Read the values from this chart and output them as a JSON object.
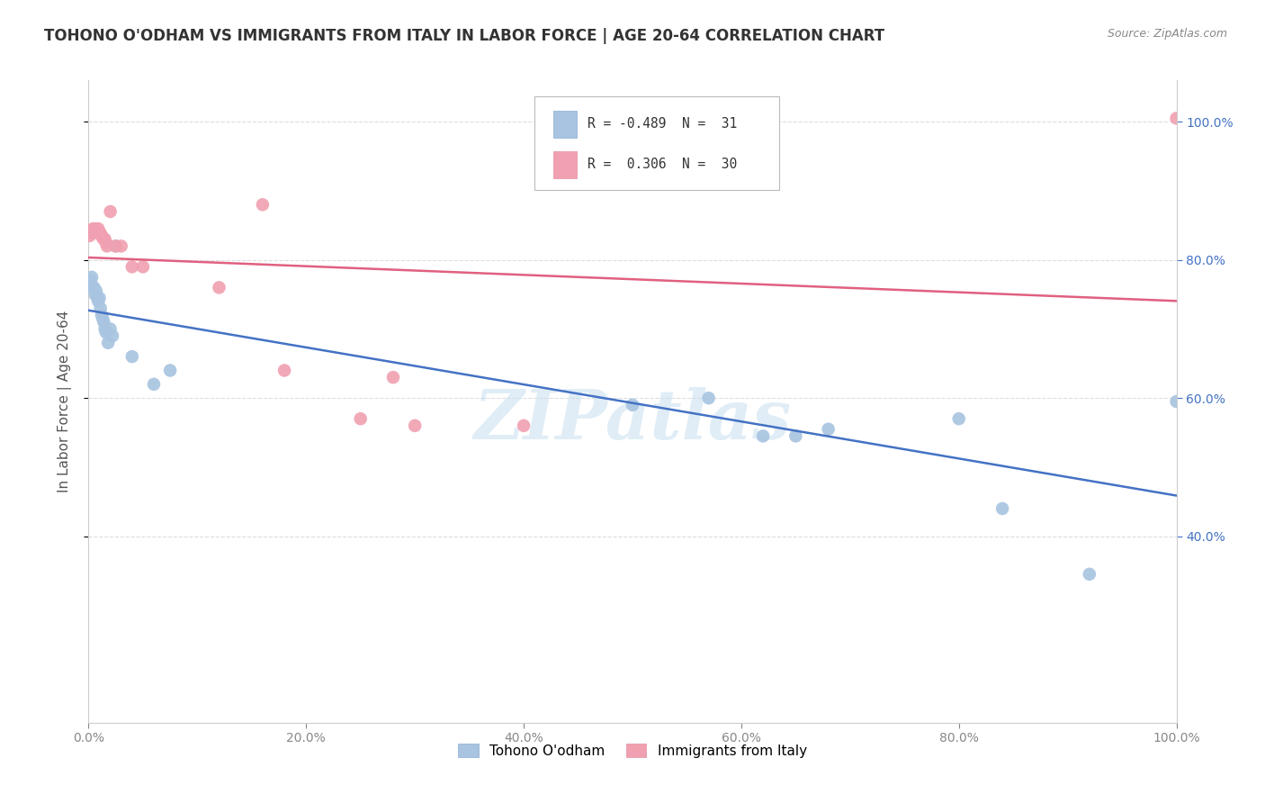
{
  "title": "TOHONO O'ODHAM VS IMMIGRANTS FROM ITALY IN LABOR FORCE | AGE 20-64 CORRELATION CHART",
  "source": "Source: ZipAtlas.com",
  "ylabel": "In Labor Force | Age 20-64",
  "blue_R": "-0.489",
  "blue_N": "31",
  "pink_R": "0.306",
  "pink_N": "30",
  "legend_label_blue": "Tohono O'odham",
  "legend_label_pink": "Immigrants from Italy",
  "watermark": "ZIPatlas",
  "blue_x": [
    0.002,
    0.003,
    0.004,
    0.005,
    0.006,
    0.007,
    0.008,
    0.009,
    0.01,
    0.011,
    0.012,
    0.013,
    0.014,
    0.015,
    0.016,
    0.018,
    0.02,
    0.022,
    0.025,
    0.04,
    0.06,
    0.075,
    0.5,
    0.57,
    0.62,
    0.65,
    0.68,
    0.8,
    0.84,
    0.92,
    1.0
  ],
  "blue_y": [
    0.77,
    0.775,
    0.76,
    0.76,
    0.75,
    0.755,
    0.745,
    0.74,
    0.745,
    0.73,
    0.72,
    0.715,
    0.71,
    0.7,
    0.695,
    0.68,
    0.7,
    0.69,
    0.82,
    0.66,
    0.62,
    0.64,
    0.59,
    0.6,
    0.545,
    0.545,
    0.555,
    0.57,
    0.44,
    0.345,
    0.595
  ],
  "pink_x": [
    0.001,
    0.002,
    0.003,
    0.004,
    0.005,
    0.006,
    0.007,
    0.008,
    0.009,
    0.01,
    0.011,
    0.012,
    0.013,
    0.014,
    0.015,
    0.016,
    0.017,
    0.02,
    0.025,
    0.03,
    0.04,
    0.05,
    0.12,
    0.16,
    0.18,
    0.25,
    0.28,
    0.3,
    0.4,
    1.0
  ],
  "pink_y": [
    0.835,
    0.84,
    0.84,
    0.845,
    0.84,
    0.845,
    0.84,
    0.84,
    0.845,
    0.84,
    0.838,
    0.835,
    0.832,
    0.83,
    0.83,
    0.825,
    0.82,
    0.87,
    0.82,
    0.82,
    0.79,
    0.79,
    0.76,
    0.88,
    0.64,
    0.57,
    0.63,
    0.56,
    0.56,
    1.005
  ],
  "blue_color": "#a8c4e0",
  "pink_color": "#f0a0b0",
  "blue_line_color": "#4472c4",
  "pink_line_color": "#e06080",
  "background_color": "#ffffff",
  "grid_color": "#dddddd",
  "xlim": [
    0.0,
    1.0
  ],
  "ylim": [
    0.13,
    1.06
  ],
  "yticks_right": [
    0.4,
    0.6,
    0.8,
    1.0
  ],
  "ytick_labels_right": [
    "40.0%",
    "60.0%",
    "80.0%",
    "100.0%"
  ],
  "xticks": [
    0.0,
    0.2,
    0.4,
    0.6,
    0.8,
    1.0
  ],
  "xtick_labels": [
    "0.0%",
    "20.0%",
    "40.0%",
    "60.0%",
    "80.0%",
    "100.0%"
  ]
}
